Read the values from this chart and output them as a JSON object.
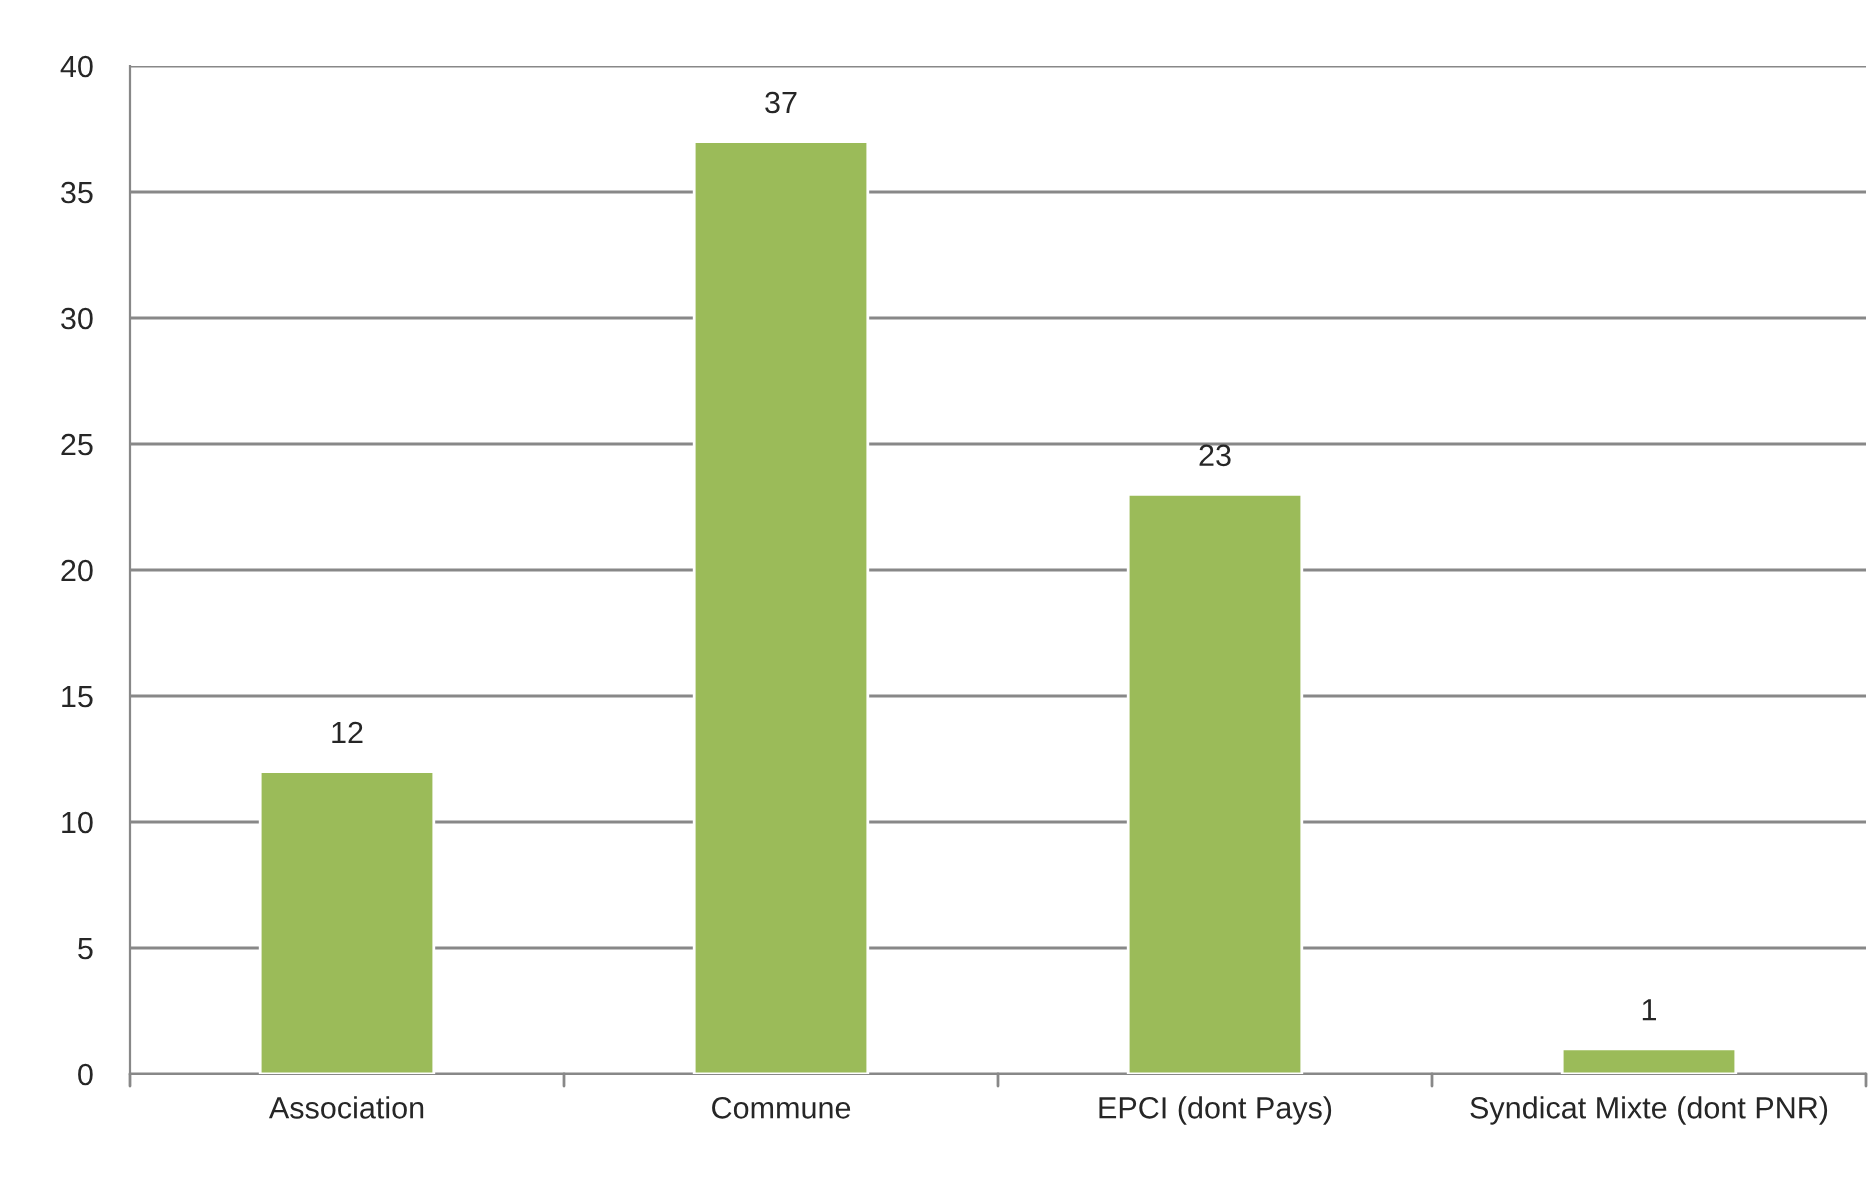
{
  "chart_data": {
    "type": "bar",
    "categories": [
      "Association",
      "Commune",
      "EPCI (dont Pays)",
      "Syndicat Mixte (dont PNR)"
    ],
    "values": [
      12,
      37,
      23,
      1
    ],
    "color": "#9bbb59",
    "ylim": [
      0,
      40
    ],
    "yticks": [
      0,
      5,
      10,
      15,
      20,
      25,
      30,
      35,
      40
    ],
    "grid": "y",
    "data_labels": true
  }
}
